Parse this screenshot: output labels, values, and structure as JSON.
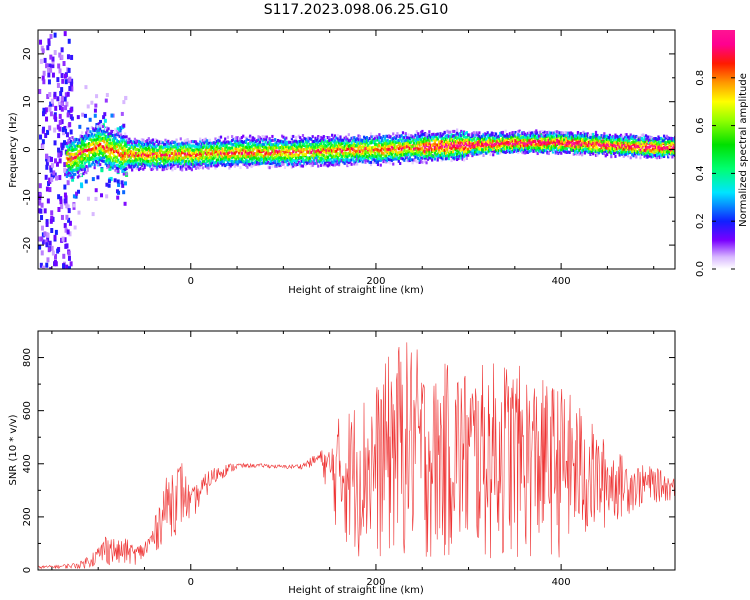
{
  "figure": {
    "title": "S117.2023.098.06.25.G10"
  },
  "chart_data": [
    {
      "type": "heatmap",
      "xlabel": "Height of straight line (km)",
      "ylabel": "Frequency (Hz)",
      "xlim": [
        -165,
        523
      ],
      "ylim": [
        -25,
        25
      ],
      "xticks": [
        0,
        200,
        400
      ],
      "yticks": [
        -20,
        -10,
        0,
        10,
        20
      ],
      "colorbar": {
        "label": "Normalized spectral amplitude",
        "ticks": [
          0.0,
          0.2,
          0.4,
          0.6,
          0.8
        ],
        "range": [
          0,
          1
        ],
        "colormap": "gist_ncar-like (white-purple-blue-cyan-green-yellow-red-magenta)"
      },
      "grid": false,
      "ridge": {
        "x": [
          -130,
          -100,
          -75,
          -50,
          0,
          50,
          100,
          150,
          200,
          250,
          300,
          350,
          400,
          450,
          500,
          523
        ],
        "frequency": [
          -2,
          1,
          -1,
          -1,
          -1,
          -0.5,
          -0.5,
          -0.2,
          0,
          0.5,
          1,
          1.5,
          1.5,
          1,
          0.5,
          0.5
        ]
      }
    },
    {
      "type": "line",
      "xlabel": "Height of straight line (km)",
      "ylabel": "SNR (10 * v/v)",
      "xlim": [
        -165,
        523
      ],
      "ylim": [
        0,
        900
      ],
      "xticks": [
        0,
        200,
        400
      ],
      "yticks": [
        0,
        200,
        400,
        600,
        800
      ],
      "color": "#ee3333",
      "grid": false,
      "envelope": {
        "x": [
          -165,
          -140,
          -120,
          -100,
          -90,
          -80,
          -70,
          -60,
          -50,
          -40,
          -30,
          -20,
          -10,
          0,
          10,
          20,
          30,
          40,
          50,
          60,
          80,
          100,
          120,
          140,
          150,
          160,
          180,
          200,
          220,
          240,
          260,
          280,
          300,
          320,
          340,
          360,
          380,
          400,
          420,
          440,
          460,
          480,
          500,
          523
        ],
        "upper": [
          15,
          20,
          30,
          90,
          150,
          110,
          120,
          90,
          110,
          180,
          320,
          400,
          420,
          300,
          340,
          380,
          395,
          400,
          405,
          400,
          400,
          395,
          400,
          450,
          470,
          580,
          650,
          700,
          860,
          870,
          720,
          800,
          760,
          780,
          800,
          760,
          720,
          700,
          630,
          520,
          450,
          400,
          390,
          350
        ],
        "lower": [
          5,
          5,
          5,
          10,
          15,
          10,
          15,
          20,
          30,
          50,
          100,
          120,
          150,
          180,
          230,
          290,
          330,
          360,
          375,
          385,
          385,
          380,
          380,
          390,
          250,
          100,
          40,
          20,
          20,
          20,
          20,
          20,
          20,
          20,
          20,
          20,
          30,
          40,
          60,
          120,
          180,
          220,
          250,
          260
        ]
      }
    }
  ]
}
